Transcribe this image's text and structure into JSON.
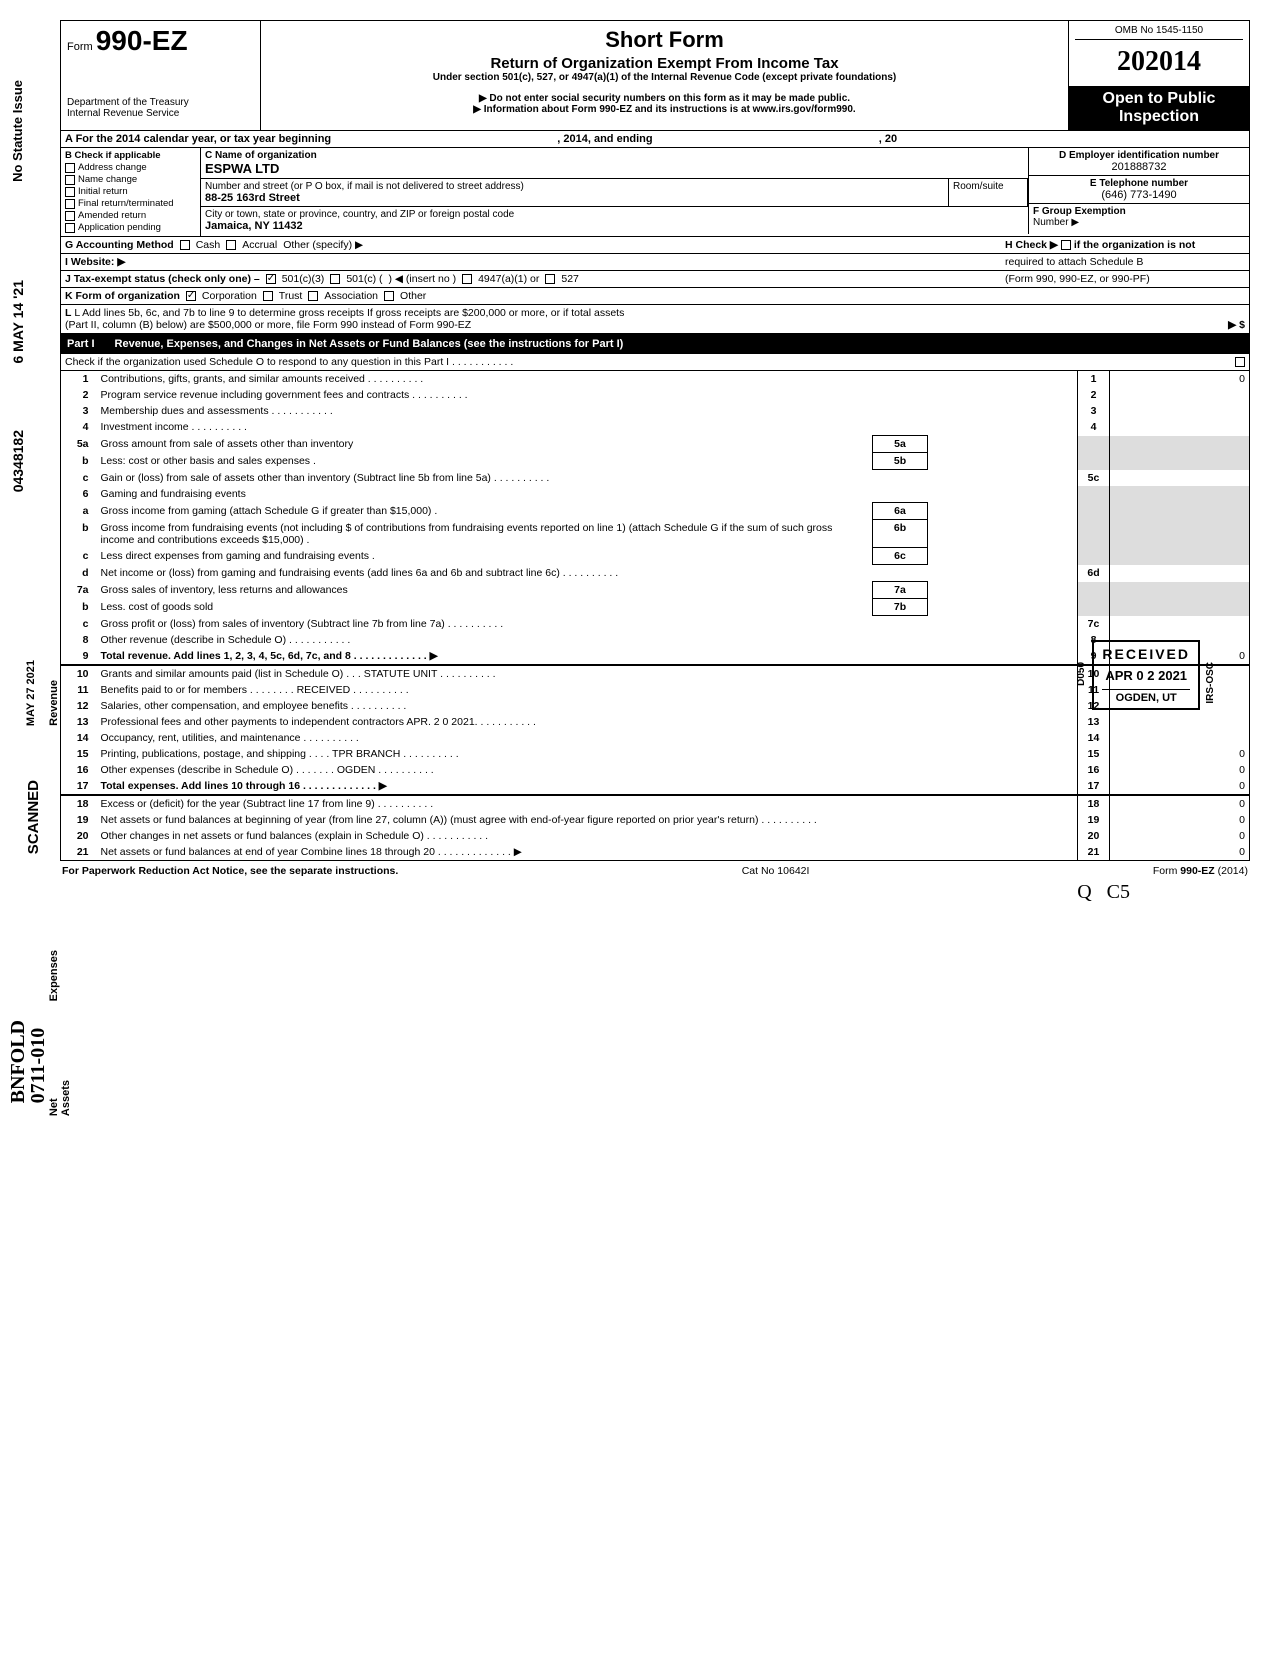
{
  "omb": "OMB No 1545-1150",
  "form_prefix": "Form",
  "form_number": "990-EZ",
  "dept1": "Department of the Treasury",
  "dept2": "Internal Revenue Service",
  "title": "Short Form",
  "subtitle": "Return of Organization Exempt From Income Tax",
  "under": "Under section 501(c), 527, or 4947(a)(1) of the Internal Revenue Code (except private foundations)",
  "arrow1": "▶ Do not enter social security numbers on this form as it may be made public.",
  "arrow2": "▶ Information about Form 990-EZ and its instructions is at www.irs.gov/form990.",
  "year": "2014",
  "open_public1": "Open to Public",
  "open_public2": "Inspection",
  "line_A": "A For the 2014 calendar year, or tax year beginning",
  "line_A_mid": ", 2014, and ending",
  "line_A_end": ", 20",
  "B_head": "B Check if applicable",
  "B_items": [
    "Address change",
    "Name change",
    "Initial return",
    "Final return/terminated",
    "Amended return",
    "Application pending"
  ],
  "C_head": "C  Name of organization",
  "C_name": "ESPWA LTD",
  "C_street_lbl": "Number and street (or P O  box, if mail is not delivered to street address)",
  "C_room_lbl": "Room/suite",
  "C_street": "88-25 163rd Street",
  "C_city_lbl": "City or town, state or province, country, and ZIP or foreign postal code",
  "C_city": "Jamaica, NY 11432",
  "D_head": "D Employer identification number",
  "D_val": "201888732",
  "E_head": "E  Telephone number",
  "E_val": "(646) 773-1490",
  "F_head": "F  Group Exemption",
  "F_head2": "Number  ▶",
  "G": "G  Accounting Method",
  "G_cash": "Cash",
  "G_accrual": "Accrual",
  "G_other": "Other (specify) ▶",
  "H": "H  Check  ▶        if the organization is not",
  "H2": "required to attach Schedule B",
  "H3": "(Form 990, 990-EZ, or 990-PF)",
  "I": "I   Website: ▶",
  "J": "J  Tax-exempt status (check only one) –",
  "J_501c3": "501(c)(3)",
  "J_501c": "501(c) (",
  "J_insert": ")  ◀ (insert no )",
  "J_4947": "4947(a)(1) or",
  "J_527": "527",
  "K": "K  Form of organization",
  "K_corp": "Corporation",
  "K_trust": "Trust",
  "K_assoc": "Association",
  "K_other": "Other",
  "L1": "L  Add lines 5b, 6c, and 7b to line 9 to determine gross receipts  If gross receipts are $200,000 or more, or if total assets",
  "L2": "(Part II, column (B) below) are $500,000 or more, file Form 990 instead of Form 990-EZ",
  "L_arrow": "▶  $",
  "part1": "Part I",
  "part1_title": "Revenue, Expenses, and Changes in Net Assets or Fund Balances (see the instructions for Part I)",
  "part1_check": "Check if the organization used Schedule O to respond to any question in this Part I  .   .   .   .   .   .   .   .   .   .   .",
  "lines": {
    "1": {
      "n": "1",
      "t": "Contributions, gifts, grants, and similar amounts received",
      "box": "1",
      "val": "0"
    },
    "2": {
      "n": "2",
      "t": "Program service revenue including government fees and contracts",
      "box": "2"
    },
    "3": {
      "n": "3",
      "t": "Membership dues and assessments .",
      "box": "3"
    },
    "4": {
      "n": "4",
      "t": "Investment income",
      "box": "4"
    },
    "5a": {
      "n": "5a",
      "t": "Gross amount from sale of assets other than inventory",
      "sub": "5a"
    },
    "5b": {
      "n": "b",
      "t": "Less: cost or other basis and sales expenses .",
      "sub": "5b"
    },
    "5c": {
      "n": "c",
      "t": "Gain or (loss) from sale of assets other than inventory (Subtract line 5b from line 5a)",
      "box": "5c"
    },
    "6": {
      "n": "6",
      "t": "Gaming and fundraising events"
    },
    "6a": {
      "n": "a",
      "t": "Gross income from gaming (attach Schedule G if greater than $15,000) .",
      "sub": "6a"
    },
    "6b": {
      "n": "b",
      "t": "Gross income from fundraising events (not including  $                         of contributions from fundraising events reported on line 1) (attach Schedule G if the sum of such gross income and contributions exceeds $15,000) .",
      "sub": "6b"
    },
    "6c": {
      "n": "c",
      "t": "Less  direct expenses from gaming and fundraising events   .",
      "sub": "6c"
    },
    "6d": {
      "n": "d",
      "t": "Net income or (loss) from gaming and fundraising events (add lines 6a and 6b and subtract line 6c)",
      "box": "6d"
    },
    "7a": {
      "n": "7a",
      "t": "Gross sales of inventory, less returns and allowances",
      "sub": "7a"
    },
    "7b": {
      "n": "b",
      "t": "Less. cost of goods sold",
      "sub": "7b"
    },
    "7c": {
      "n": "c",
      "t": "Gross profit or (loss) from sales of inventory (Subtract line 7b from line 7a)",
      "box": "7c"
    },
    "8": {
      "n": "8",
      "t": "Other revenue (describe in Schedule O) .",
      "box": "8"
    },
    "9": {
      "n": "9",
      "t": "Total revenue. Add lines 1, 2, 3, 4, 5c, 6d, 7c, and 8",
      "box": "9",
      "val": "0",
      "bold": true,
      "arrow": true
    },
    "10": {
      "n": "10",
      "t": "Grants and similar amounts paid (list in Schedule O)   .   .   .  STATUTE UNIT",
      "box": "10"
    },
    "11": {
      "n": "11",
      "t": "Benefits paid to or for members   .   .   .   .                    .   .   .   . RECEIVED",
      "box": "11"
    },
    "12": {
      "n": "12",
      "t": "Salaries, other compensation, and employee benefits",
      "box": "12"
    },
    "13": {
      "n": "13",
      "t": "Professional fees and other payments to independent contractors APR. 2 0 2021.",
      "box": "13"
    },
    "14": {
      "n": "14",
      "t": "Occupancy, rent, utilities, and maintenance",
      "box": "14"
    },
    "15": {
      "n": "15",
      "t": "Printing, publications, postage, and shipping       .   .   .   .  TPR BRANCH",
      "box": "15",
      "val": "0"
    },
    "16": {
      "n": "16",
      "t": "Other expenses (describe in Schedule O)   .   .   .   .   .   .   .  OGDEN",
      "box": "16",
      "val": "0"
    },
    "17": {
      "n": "17",
      "t": "Total expenses. Add lines 10 through 16",
      "box": "17",
      "val": "0",
      "bold": true,
      "arrow": true
    },
    "18": {
      "n": "18",
      "t": "Excess or (deficit) for the year (Subtract line 17 from line 9)",
      "box": "18",
      "val": "0"
    },
    "19": {
      "n": "19",
      "t": "Net assets or fund balances at beginning of year (from line 27, column (A)) (must agree with end-of-year figure reported on prior year's return)",
      "box": "19",
      "val": "0"
    },
    "20": {
      "n": "20",
      "t": "Other changes in net assets or fund balances (explain in Schedule O) .",
      "box": "20",
      "val": "0"
    },
    "21": {
      "n": "21",
      "t": "Net assets or fund balances at end of year  Combine lines 18 through 20",
      "box": "21",
      "val": "0",
      "arrow": true
    }
  },
  "side_labels": {
    "no_statute": "No Statute Issue",
    "date1": "6 MAY 14 '21",
    "caseno": "04348182",
    "date2": "MAY 27 2021",
    "revenue": "Revenue",
    "scanned": "SCANNED",
    "expenses": "Expenses",
    "netassets": "Net Assets",
    "hand": "BNFOLD\n0711-010"
  },
  "received": {
    "rx": "RECEIVED",
    "date": "APR 0 2 2021",
    "where": "OGDEN, UT",
    "d050": "D050",
    "irs": "IRS-OSC"
  },
  "footer": {
    "left": "For Paperwork Reduction Act Notice, see the separate instructions.",
    "mid": "Cat No  10642I",
    "right": "Form 990-EZ (2014)"
  },
  "hand_q": "Q",
  "hand_c5": "C5"
}
